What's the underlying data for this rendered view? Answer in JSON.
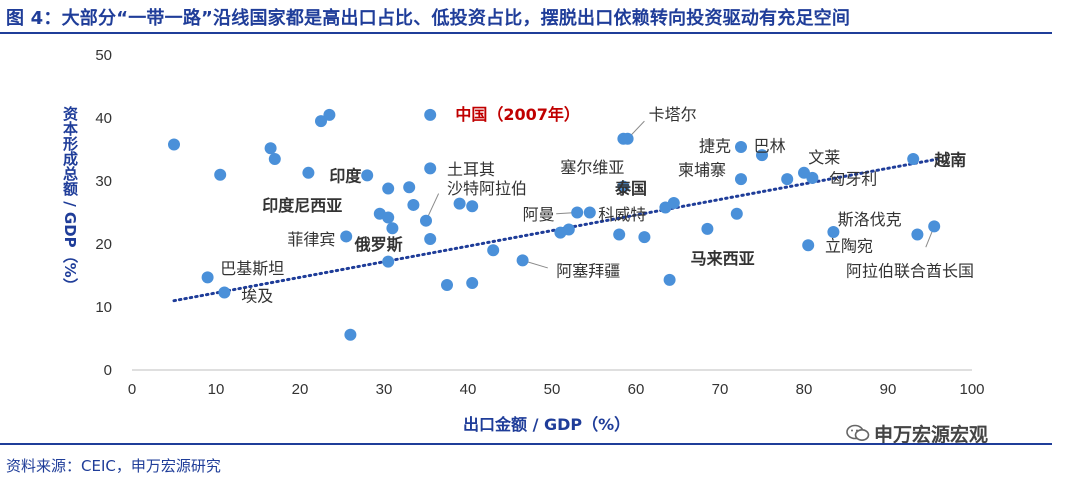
{
  "title": "图 4：大部分“一带一路”沿线国家都是高出口占比、低投资占比，摆脱出口依赖转向投资驱动有充足空间",
  "source": "资料来源：CEIC，申万宏源研究",
  "watermark": "申万宏源宏观",
  "colors": {
    "accent": "#1f3d99",
    "marker": "#4a90d9",
    "highlight": "#c00000",
    "trend": "#1f3d99"
  },
  "chart_data": {
    "type": "scatter",
    "title": "",
    "xlabel": "出口金额 / GDP（%）",
    "ylabel": "资本形成总额 / GDP（%）",
    "xlim": [
      0,
      100
    ],
    "ylim": [
      0,
      50
    ],
    "xticks": [
      0,
      10,
      20,
      30,
      40,
      50,
      60,
      70,
      80,
      90,
      100
    ],
    "yticks": [
      0,
      10,
      20,
      30,
      40,
      50
    ],
    "grid": false,
    "legend": "none",
    "trendline": {
      "style": "dotted",
      "start": [
        5,
        11
      ],
      "end": [
        96,
        33.5
      ]
    },
    "points": [
      {
        "x": 5,
        "y": 35.8
      },
      {
        "x": 9,
        "y": 14.7
      },
      {
        "x": 11,
        "y": 12.3
      },
      {
        "x": 10.5,
        "y": 31
      },
      {
        "x": 16.5,
        "y": 35.2
      },
      {
        "x": 17,
        "y": 33.5
      },
      {
        "x": 21,
        "y": 31.3
      },
      {
        "x": 22.5,
        "y": 39.5
      },
      {
        "x": 23.5,
        "y": 40.5
      },
      {
        "x": 25.5,
        "y": 21.2
      },
      {
        "x": 26,
        "y": 5.6
      },
      {
        "x": 28,
        "y": 30.9
      },
      {
        "x": 29.5,
        "y": 24.8
      },
      {
        "x": 30.5,
        "y": 28.8
      },
      {
        "x": 30.5,
        "y": 24.2
      },
      {
        "x": 30.5,
        "y": 17.2
      },
      {
        "x": 31,
        "y": 22.5
      },
      {
        "x": 33,
        "y": 29
      },
      {
        "x": 33.5,
        "y": 26.2
      },
      {
        "x": 35,
        "y": 23.7
      },
      {
        "x": 35.5,
        "y": 40.5
      },
      {
        "x": 35.5,
        "y": 32
      },
      {
        "x": 35.5,
        "y": 20.8
      },
      {
        "x": 37.5,
        "y": 13.5
      },
      {
        "x": 39,
        "y": 26.4
      },
      {
        "x": 40.5,
        "y": 26.0
      },
      {
        "x": 40.5,
        "y": 13.8
      },
      {
        "x": 43,
        "y": 19
      },
      {
        "x": 46.5,
        "y": 17.4
      },
      {
        "x": 51,
        "y": 21.8
      },
      {
        "x": 52,
        "y": 22.3
      },
      {
        "x": 53,
        "y": 25.0
      },
      {
        "x": 54.5,
        "y": 25.0
      },
      {
        "x": 58,
        "y": 21.5
      },
      {
        "x": 58.5,
        "y": 29.1
      },
      {
        "x": 58.5,
        "y": 36.7
      },
      {
        "x": 59,
        "y": 36.7
      },
      {
        "x": 61,
        "y": 21.1
      },
      {
        "x": 63.5,
        "y": 25.8
      },
      {
        "x": 64,
        "y": 14.3
      },
      {
        "x": 64.5,
        "y": 26.5
      },
      {
        "x": 68.5,
        "y": 22.4
      },
      {
        "x": 72.5,
        "y": 30.3
      },
      {
        "x": 72,
        "y": 24.8
      },
      {
        "x": 72.5,
        "y": 35.4
      },
      {
        "x": 75,
        "y": 34.1
      },
      {
        "x": 78,
        "y": 30.3
      },
      {
        "x": 80,
        "y": 31.3
      },
      {
        "x": 80.5,
        "y": 19.8
      },
      {
        "x": 81,
        "y": 30.5
      },
      {
        "x": 83.5,
        "y": 21.9
      },
      {
        "x": 93,
        "y": 33.5
      },
      {
        "x": 93.5,
        "y": 21.5
      },
      {
        "x": 95.5,
        "y": 22.8
      }
    ],
    "annotations": [
      {
        "text": "中国（2007年）",
        "x": 38.5,
        "y": 40.6,
        "bold": true,
        "color": "highlight"
      },
      {
        "text": "卡塔尔",
        "x": 61.5,
        "y": 40.6,
        "bold": false
      },
      {
        "text": "捷克",
        "x": 67.5,
        "y": 35.6,
        "bold": false
      },
      {
        "text": "巴林",
        "x": 74,
        "y": 35.6,
        "bold": false
      },
      {
        "text": "文莱",
        "x": 80.5,
        "y": 33.8,
        "bold": false
      },
      {
        "text": "越南",
        "x": 95.5,
        "y": 33.4,
        "bold": true
      },
      {
        "text": "匈牙利",
        "x": 83,
        "y": 30.4,
        "bold": false
      },
      {
        "text": "土耳其",
        "x": 37.5,
        "y": 31.9,
        "bold": false
      },
      {
        "text": "塞尔维亚",
        "x": 51,
        "y": 32.2,
        "bold": false
      },
      {
        "text": "柬埔寨",
        "x": 65,
        "y": 31.8,
        "bold": false
      },
      {
        "text": "印度",
        "x": 23.5,
        "y": 30.9,
        "bold": true
      },
      {
        "text": "沙特阿拉伯",
        "x": 37.5,
        "y": 28.9,
        "bold": false
      },
      {
        "text": "泰国",
        "x": 57.5,
        "y": 28.9,
        "bold": true
      },
      {
        "text": "印度尼西亚",
        "x": 15.5,
        "y": 26.2,
        "bold": true
      },
      {
        "text": "阿曼",
        "x": 46.5,
        "y": 24.8,
        "bold": false
      },
      {
        "text": "科威特",
        "x": 55.5,
        "y": 24.8,
        "bold": false
      },
      {
        "text": "斯洛伐克",
        "x": 84,
        "y": 24.0,
        "bold": false
      },
      {
        "text": "菲律宾",
        "x": 18.5,
        "y": 20.8,
        "bold": false
      },
      {
        "text": "俄罗斯",
        "x": 26.5,
        "y": 20.0,
        "bold": true
      },
      {
        "text": "立陶宛",
        "x": 82.5,
        "y": 19.8,
        "bold": false
      },
      {
        "text": "马来西亚",
        "x": 66.5,
        "y": 17.8,
        "bold": true
      },
      {
        "text": "巴基斯坦",
        "x": 10.5,
        "y": 16.2,
        "bold": false
      },
      {
        "text": "阿塞拜疆",
        "x": 50.5,
        "y": 15.8,
        "bold": false
      },
      {
        "text": "阿拉伯联合酋长国",
        "x": 85,
        "y": 15.8,
        "bold": false
      },
      {
        "text": "埃及",
        "x": 13,
        "y": 11.8,
        "bold": false
      }
    ],
    "leaders": [
      {
        "from": [
          23.5,
          40.5
        ],
        "to": [
          23.5,
          40.5
        ]
      },
      {
        "from": [
          59,
          36.7
        ],
        "to": [
          61,
          39.5
        ]
      },
      {
        "from": [
          35,
          23.7
        ],
        "to": [
          36.5,
          28.0
        ]
      },
      {
        "from": [
          53,
          25.0
        ],
        "to": [
          50.5,
          24.8
        ]
      },
      {
        "from": [
          46.5,
          17.4
        ],
        "to": [
          49.5,
          16.2
        ]
      },
      {
        "from": [
          95.5,
          22.8
        ],
        "to": [
          94.5,
          19.5
        ]
      }
    ]
  }
}
